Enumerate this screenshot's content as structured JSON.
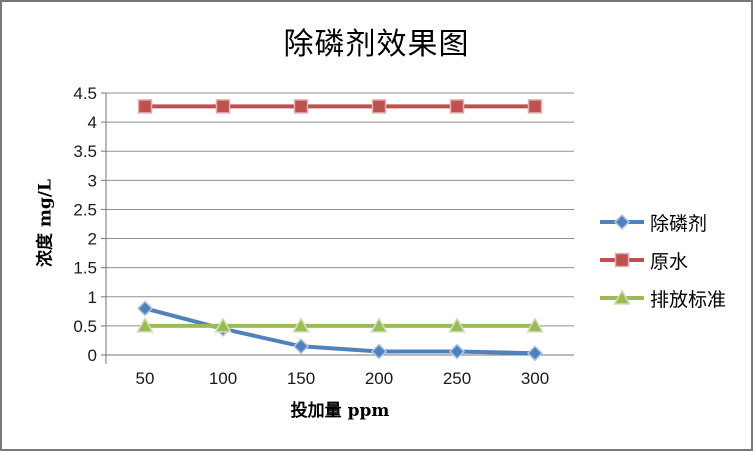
{
  "frame": {
    "background": "#ffffff",
    "border_color": "#787878"
  },
  "chart_data": {
    "type": "line",
    "title": "除磷剂效果图",
    "xlabel": "投加量  ppm",
    "ylabel": "浓度 mg/L",
    "categories": [
      "50",
      "100",
      "150",
      "200",
      "250",
      "300"
    ],
    "series": [
      {
        "name": "除磷剂",
        "color": "#4F81BD",
        "marker": "diamond",
        "values": [
          0.8,
          0.45,
          0.15,
          0.06,
          0.06,
          0.03
        ]
      },
      {
        "name": "原水",
        "color": "#C0504D",
        "marker": "square",
        "values": [
          4.27,
          4.27,
          4.27,
          4.27,
          4.27,
          4.27
        ]
      },
      {
        "name": "排放标准",
        "color": "#9BBB59",
        "marker": "triangle",
        "values": [
          0.5,
          0.5,
          0.5,
          0.5,
          0.5,
          0.5
        ]
      }
    ],
    "ylim": [
      0,
      4.5
    ],
    "ytick_step": 0.5,
    "ytick_labels": [
      "0",
      "0.5",
      "1",
      "1.5",
      "2",
      "2.5",
      "3",
      "3.5",
      "4",
      "4.5"
    ],
    "grid": true,
    "legend_position": "right",
    "styles": {
      "gridline_color": "#8f8f8f",
      "axis_line_color": "#767676",
      "tick_text_color": "#1a1a1a"
    }
  }
}
